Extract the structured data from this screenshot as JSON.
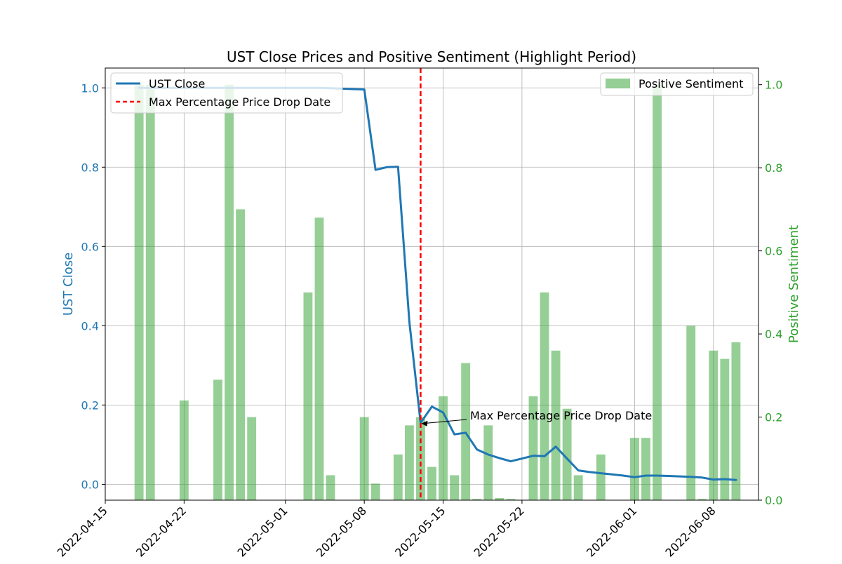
{
  "chart_data": {
    "type": "bar+line",
    "title": "UST Close Prices and Positive Sentiment (Highlight Period)",
    "x_axis": {
      "type": "date",
      "range": [
        "2022-04-15",
        "2022-06-12"
      ],
      "ticks": [
        "2022-04-15",
        "2022-04-22",
        "2022-05-01",
        "2022-05-08",
        "2022-05-15",
        "2022-05-22",
        "2022-06-01",
        "2022-06-08"
      ]
    },
    "y_left": {
      "label": "UST Close",
      "color": "#1f77b4",
      "range": [
        -0.04,
        1.05
      ],
      "ticks": [
        "0.0",
        "0.2",
        "0.4",
        "0.6",
        "0.8",
        "1.0"
      ]
    },
    "y_right": {
      "label": "Positive Sentiment",
      "color": "#2ca02c",
      "range": [
        0,
        1.04
      ],
      "ticks": [
        "0.0",
        "0.2",
        "0.4",
        "0.6",
        "0.8",
        "1.0"
      ]
    },
    "grid": true,
    "series": [
      {
        "name": "UST Close",
        "kind": "line",
        "color": "#1f77b4",
        "x": [
          "2022-04-18",
          "2022-04-19",
          "2022-04-20",
          "2022-04-21",
          "2022-04-22",
          "2022-04-23",
          "2022-04-24",
          "2022-04-25",
          "2022-04-26",
          "2022-04-27",
          "2022-04-28",
          "2022-04-29",
          "2022-04-30",
          "2022-05-01",
          "2022-05-02",
          "2022-05-03",
          "2022-05-04",
          "2022-05-05",
          "2022-05-06",
          "2022-05-07",
          "2022-05-08",
          "2022-05-09",
          "2022-05-10",
          "2022-05-11",
          "2022-05-12",
          "2022-05-13",
          "2022-05-14",
          "2022-05-15",
          "2022-05-16",
          "2022-05-17",
          "2022-05-18",
          "2022-05-19",
          "2022-05-20",
          "2022-05-21",
          "2022-05-22",
          "2022-05-23",
          "2022-05-24",
          "2022-05-25",
          "2022-05-26",
          "2022-05-27",
          "2022-05-28",
          "2022-05-29",
          "2022-05-30",
          "2022-05-31",
          "2022-06-01",
          "2022-06-02",
          "2022-06-03",
          "2022-06-04",
          "2022-06-05",
          "2022-06-06",
          "2022-06-07",
          "2022-06-08",
          "2022-06-09",
          "2022-06-10"
        ],
        "y": [
          1.0,
          1.0,
          1.0,
          1.0,
          1.0,
          1.0,
          1.0,
          1.0,
          1.0,
          1.0,
          1.0,
          1.0,
          1.0,
          1.0,
          1.0,
          1.0,
          1.0,
          0.999,
          0.998,
          0.997,
          0.996,
          0.793,
          0.8,
          0.801,
          0.41,
          0.155,
          0.196,
          0.181,
          0.126,
          0.13,
          0.088,
          0.075,
          0.066,
          0.058,
          0.065,
          0.072,
          0.071,
          0.095,
          0.065,
          0.035,
          0.031,
          0.028,
          0.025,
          0.022,
          0.018,
          0.022,
          0.022,
          0.021,
          0.02,
          0.019,
          0.017,
          0.012,
          0.013,
          0.011
        ]
      },
      {
        "name": "Positive Sentiment",
        "kind": "bar",
        "color": "#2ca02c",
        "opacity": 0.5,
        "x": [
          "2022-04-18",
          "2022-04-19",
          "2022-04-22",
          "2022-04-25",
          "2022-04-26",
          "2022-04-27",
          "2022-04-28",
          "2022-05-03",
          "2022-05-04",
          "2022-05-05",
          "2022-05-08",
          "2022-05-09",
          "2022-05-11",
          "2022-05-12",
          "2022-05-13",
          "2022-05-14",
          "2022-05-15",
          "2022-05-16",
          "2022-05-17",
          "2022-05-18",
          "2022-05-19",
          "2022-05-20",
          "2022-05-21",
          "2022-05-23",
          "2022-05-24",
          "2022-05-25",
          "2022-05-26",
          "2022-05-27",
          "2022-05-29",
          "2022-06-01",
          "2022-06-02",
          "2022-06-03",
          "2022-06-06",
          "2022-06-07",
          "2022-06-08",
          "2022-06-09",
          "2022-06-10"
        ],
        "y": [
          1.0,
          1.0,
          0.24,
          0.29,
          1.0,
          0.7,
          0.2,
          0.5,
          0.68,
          0.06,
          0.2,
          0.04,
          0.11,
          0.18,
          0.2,
          0.08,
          0.25,
          0.06,
          0.33,
          0.003,
          0.18,
          0.005,
          0.003,
          0.25,
          0.5,
          0.36,
          0.22,
          0.06,
          0.11,
          0.15,
          0.15,
          1.0,
          0.42,
          0.003,
          0.36,
          0.34,
          0.38
        ]
      }
    ],
    "marker_line": {
      "label": "Max Percentage Price Drop Date",
      "x": "2022-05-13",
      "color": "#ff0000",
      "style": "dashed"
    },
    "annotation": {
      "text": "Max Percentage Price Drop Date",
      "target_x": "2022-05-13",
      "target_y": 0.155
    },
    "legends": [
      {
        "position": "top-left",
        "entries": [
          "UST Close",
          "Max Percentage Price Drop Date"
        ]
      },
      {
        "position": "top-right",
        "entries": [
          "Positive Sentiment"
        ]
      }
    ]
  }
}
